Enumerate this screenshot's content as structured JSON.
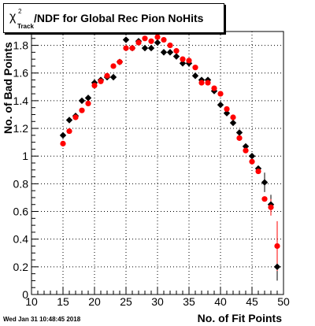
{
  "chart_data": {
    "type": "scatter",
    "title": "/NDF for Global Rec Pion NoHits",
    "title_symbol": "χ",
    "title_sup": "2",
    "title_sub": "Track",
    "xlabel": "No. of Fit Points",
    "ylabel": "No. of Bad Points",
    "xlim": [
      10,
      50
    ],
    "ylim": [
      0,
      1.9
    ],
    "x_ticks": [
      10,
      15,
      20,
      25,
      30,
      35,
      40,
      45,
      50
    ],
    "y_ticks": [
      0,
      0.2,
      0.4,
      0.6,
      0.8,
      1,
      1.2,
      1.4,
      1.6,
      1.8
    ],
    "grid": true,
    "series": [
      {
        "color": "#000000",
        "points": [
          {
            "x": 15,
            "y": 1.15
          },
          {
            "x": 16,
            "y": 1.26
          },
          {
            "x": 17,
            "y": 1.29
          },
          {
            "x": 18,
            "y": 1.4
          },
          {
            "x": 19,
            "y": 1.42
          },
          {
            "x": 20,
            "y": 1.53
          },
          {
            "x": 21,
            "y": 1.55
          },
          {
            "x": 22,
            "y": 1.57
          },
          {
            "x": 23,
            "y": 1.57
          },
          {
            "x": 24,
            "y": 1.68
          },
          {
            "x": 25,
            "y": 1.84
          },
          {
            "x": 26,
            "y": 1.78
          },
          {
            "x": 27,
            "y": 1.83
          },
          {
            "x": 28,
            "y": 1.78
          },
          {
            "x": 29,
            "y": 1.78
          },
          {
            "x": 30,
            "y": 1.82
          },
          {
            "x": 31,
            "y": 1.75
          },
          {
            "x": 32,
            "y": 1.75
          },
          {
            "x": 33,
            "y": 1.72
          },
          {
            "x": 34,
            "y": 1.67
          },
          {
            "x": 35,
            "y": 1.67
          },
          {
            "x": 36,
            "y": 1.58
          },
          {
            "x": 37,
            "y": 1.55
          },
          {
            "x": 38,
            "y": 1.55
          },
          {
            "x": 39,
            "y": 1.47
          },
          {
            "x": 40,
            "y": 1.37
          },
          {
            "x": 41,
            "y": 1.31
          },
          {
            "x": 42,
            "y": 1.24
          },
          {
            "x": 43,
            "y": 1.17
          },
          {
            "x": 44,
            "y": 1.07
          },
          {
            "x": 45,
            "y": 1.0
          },
          {
            "x": 46,
            "y": 0.91
          },
          {
            "x": 47,
            "y": 0.81
          },
          {
            "x": 48,
            "y": 0.65
          },
          {
            "x": 49,
            "y": 0.2
          }
        ]
      },
      {
        "color": "#ff0000",
        "points": [
          {
            "x": 15,
            "y": 1.09
          },
          {
            "x": 16,
            "y": 1.18
          },
          {
            "x": 17,
            "y": 1.28
          },
          {
            "x": 18,
            "y": 1.33
          },
          {
            "x": 19,
            "y": 1.38
          },
          {
            "x": 20,
            "y": 1.51
          },
          {
            "x": 21,
            "y": 1.54
          },
          {
            "x": 22,
            "y": 1.58
          },
          {
            "x": 23,
            "y": 1.65
          },
          {
            "x": 24,
            "y": 1.68
          },
          {
            "x": 25,
            "y": 1.78
          },
          {
            "x": 26,
            "y": 1.78
          },
          {
            "x": 27,
            "y": 1.82
          },
          {
            "x": 28,
            "y": 1.85
          },
          {
            "x": 29,
            "y": 1.83
          },
          {
            "x": 30,
            "y": 1.86
          },
          {
            "x": 31,
            "y": 1.84
          },
          {
            "x": 32,
            "y": 1.8
          },
          {
            "x": 33,
            "y": 1.76
          },
          {
            "x": 34,
            "y": 1.7
          },
          {
            "x": 35,
            "y": 1.69
          },
          {
            "x": 36,
            "y": 1.64
          },
          {
            "x": 37,
            "y": 1.53
          },
          {
            "x": 38,
            "y": 1.53
          },
          {
            "x": 39,
            "y": 1.49
          },
          {
            "x": 40,
            "y": 1.45
          },
          {
            "x": 41,
            "y": 1.34
          },
          {
            "x": 42,
            "y": 1.28
          },
          {
            "x": 43,
            "y": 1.13
          },
          {
            "x": 44,
            "y": 1.04
          },
          {
            "x": 45,
            "y": 0.96
          },
          {
            "x": 46,
            "y": 0.89
          },
          {
            "x": 47,
            "y": 0.69
          },
          {
            "x": 48,
            "y": 0.63
          },
          {
            "x": 49,
            "y": 0.35
          }
        ]
      }
    ]
  },
  "footer": {
    "timestamp": "Wed Jan 31 10:48:45 2018"
  }
}
